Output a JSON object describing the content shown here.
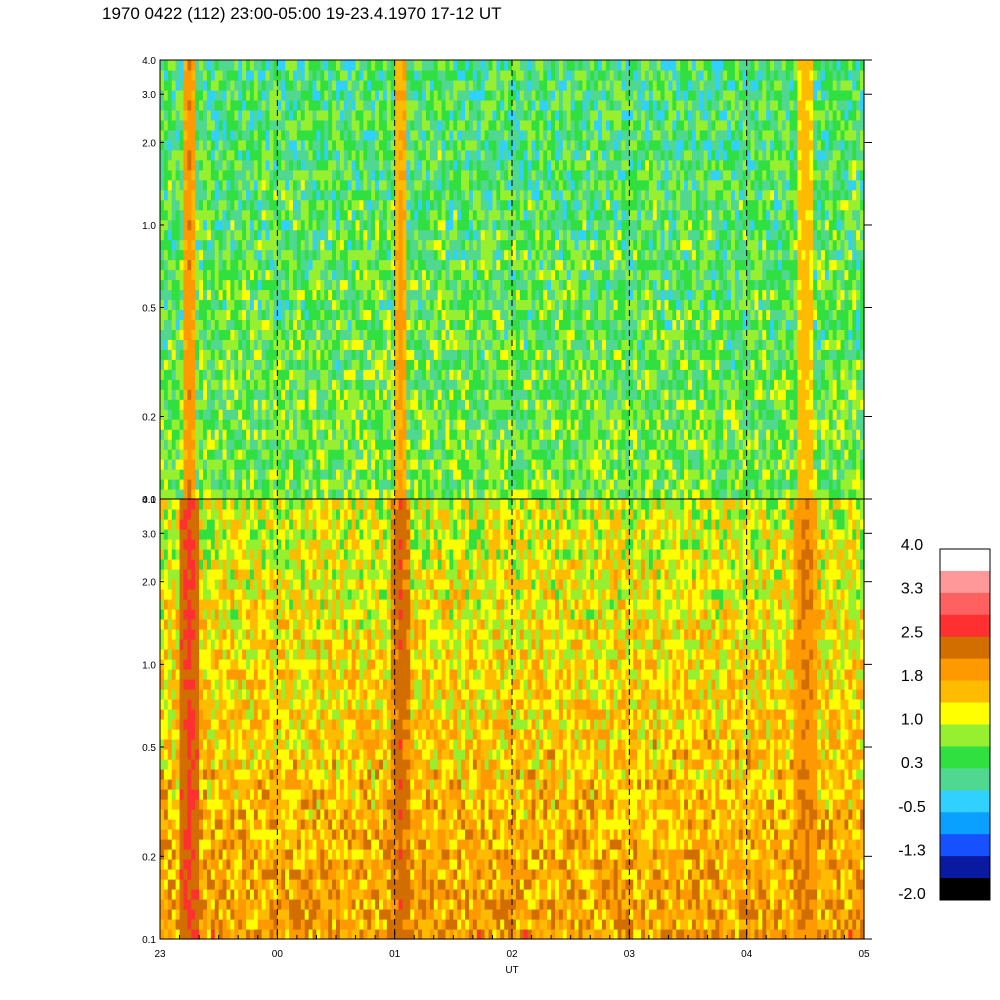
{
  "title": "1970 0422 (112) 23:00-05:00 19-23.4.1970  17-12 UT",
  "chart_data": {
    "type": "heatmap",
    "x_axis": {
      "label": "UT",
      "tick_labels": [
        "23",
        "00",
        "01",
        "02",
        "03",
        "04",
        "05"
      ],
      "range": [
        0,
        6
      ],
      "dashed_lines_at": [
        1,
        2,
        3,
        4,
        5
      ]
    },
    "y_axis": {
      "scale": "log",
      "range": [
        0.1,
        4.0
      ],
      "tick_values": [
        0.1,
        0.2,
        0.5,
        1.0,
        2.0,
        3.0,
        4.0
      ],
      "tick_labels": [
        "0.1",
        "0.2",
        "0.5",
        "1.0",
        "2.0",
        "3.0",
        "4.0"
      ]
    },
    "panels": [
      {
        "name": "upper",
        "dominant_level": 0.8,
        "note_levels": {
          "low_freq": 0.6,
          "high_freq": 0.3
        }
      },
      {
        "name": "lower",
        "dominant_level": 1.6,
        "note_levels": {
          "low_freq": 1.9,
          "high_freq": 1.0
        }
      }
    ],
    "colorbar": {
      "tick_labels": [
        "4.0",
        "3.3",
        "2.5",
        "1.8",
        "1.0",
        "0.3",
        "-0.5",
        "-1.3",
        "-2.0"
      ],
      "range": [
        -2.0,
        4.0
      ],
      "colors": [
        "#000000",
        "#0a1aa0",
        "#1650ff",
        "#0aa0ff",
        "#30d0ff",
        "#50d890",
        "#30e040",
        "#96f030",
        "#ffff00",
        "#ffbb00",
        "#ff9900",
        "#d26e00",
        "#ff3030",
        "#ff6060",
        "#ff9898",
        "#ffffff"
      ]
    },
    "features": [
      {
        "label": "strong band near 23:15",
        "x": 0.25,
        "level": 2.6
      },
      {
        "label": "enhancement near 01:00",
        "x": 2.05,
        "level": 2.4
      },
      {
        "label": "enhancement near 04:30",
        "x": 5.5,
        "level": 2.2
      }
    ]
  }
}
